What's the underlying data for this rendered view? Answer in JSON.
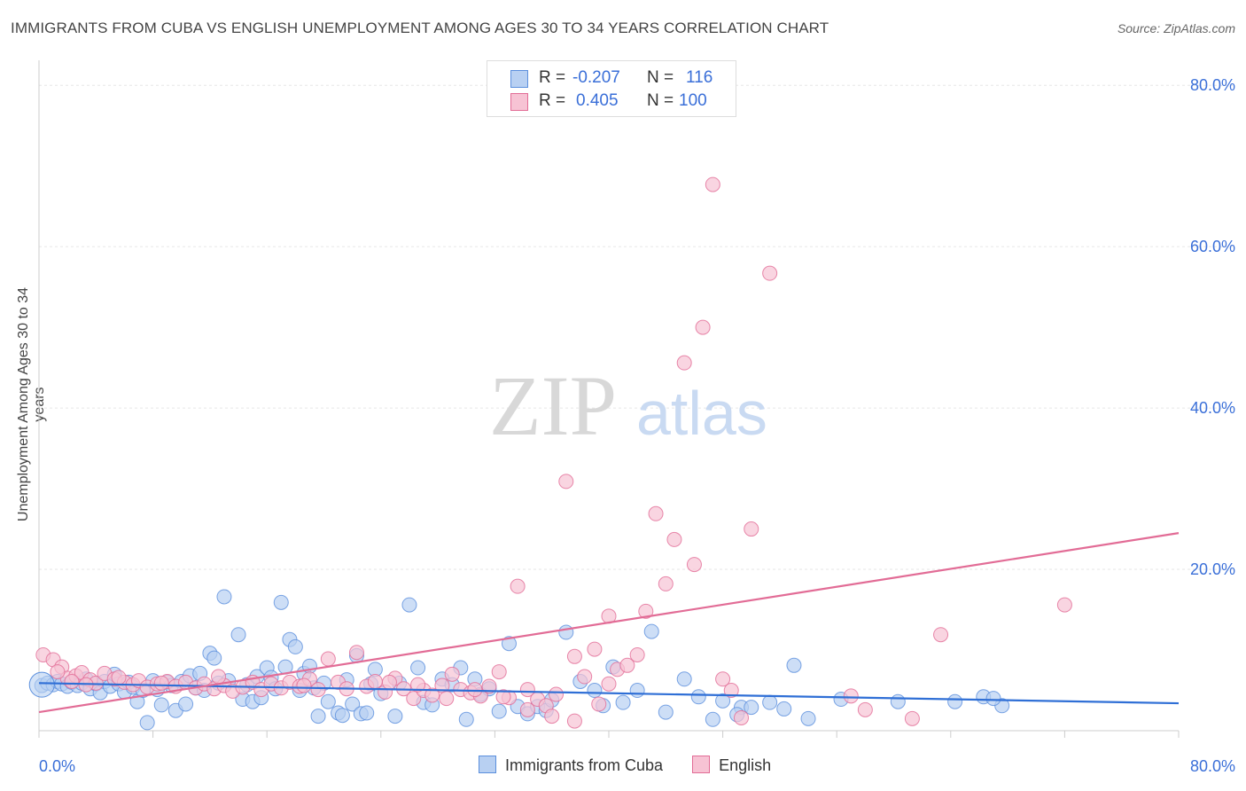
{
  "title": "IMMIGRANTS FROM CUBA VS ENGLISH UNEMPLOYMENT AMONG AGES 30 TO 34 YEARS CORRELATION CHART",
  "source": "Source: ZipAtlas.com",
  "watermark": {
    "part1": "ZIP",
    "part2": "atlas"
  },
  "colors": {
    "blue": "#5b8fdd",
    "blue_fill": "#b8d0f2",
    "pink": "#e26c96",
    "pink_fill": "#f7c3d4",
    "tick": "#3a6fd8"
  },
  "legend": {
    "rows": [
      {
        "r_label": "R =",
        "r_value": "-0.207",
        "n_label": "N =",
        "n_value": "116"
      },
      {
        "r_label": "R =",
        "r_value": "0.405",
        "n_label": "N =",
        "n_value": "100"
      }
    ]
  },
  "chart_data": {
    "type": "scatter",
    "title": "IMMIGRANTS FROM CUBA VS ENGLISH UNEMPLOYMENT AMONG AGES 30 TO 34 YEARS CORRELATION CHART",
    "xlabel": "",
    "ylabel": "Unemployment Among Ages 30 to 34 years",
    "xlim": [
      0,
      80
    ],
    "ylim": [
      0,
      82
    ],
    "x_tick_labels": [
      "0.0%",
      "80.0%"
    ],
    "y_tick_labels": [
      "80.0%",
      "60.0%",
      "40.0%",
      "20.0%"
    ],
    "y_ticks": [
      80,
      60,
      40,
      20
    ],
    "grid": true,
    "series": [
      {
        "name": "Immigrants from Cuba",
        "trend": {
          "x": [
            0,
            80
          ],
          "y": [
            5.9,
            3.4
          ]
        },
        "points": [
          [
            0.2,
            5.6
          ],
          [
            0.6,
            5.9
          ],
          [
            1.0,
            5.7
          ],
          [
            1.3,
            6.1
          ],
          [
            1.6,
            5.8
          ],
          [
            2.0,
            5.5
          ],
          [
            2.3,
            6.0
          ],
          [
            2.7,
            5.6
          ],
          [
            3.0,
            5.9
          ],
          [
            3.3,
            6.4
          ],
          [
            3.6,
            5.2
          ],
          [
            4.0,
            5.8
          ],
          [
            4.3,
            4.7
          ],
          [
            4.6,
            6.1
          ],
          [
            5.0,
            5.5
          ],
          [
            5.3,
            7.0
          ],
          [
            5.6,
            5.8
          ],
          [
            6.0,
            4.8
          ],
          [
            6.3,
            6.0
          ],
          [
            6.6,
            5.4
          ],
          [
            6.9,
            3.6
          ],
          [
            7.3,
            5.0
          ],
          [
            7.6,
            1.0
          ],
          [
            8.0,
            6.2
          ],
          [
            8.3,
            5.1
          ],
          [
            8.6,
            3.2
          ],
          [
            9.0,
            6.0
          ],
          [
            9.3,
            5.6
          ],
          [
            9.6,
            2.5
          ],
          [
            10.0,
            6.1
          ],
          [
            10.3,
            3.3
          ],
          [
            10.6,
            6.8
          ],
          [
            11.0,
            5.3
          ],
          [
            11.3,
            7.1
          ],
          [
            11.6,
            5.0
          ],
          [
            12.0,
            9.6
          ],
          [
            12.3,
            9.0
          ],
          [
            12.6,
            5.9
          ],
          [
            13.0,
            16.6
          ],
          [
            13.3,
            6.2
          ],
          [
            14.0,
            11.9
          ],
          [
            14.3,
            3.9
          ],
          [
            14.6,
            5.7
          ],
          [
            15.0,
            3.6
          ],
          [
            15.3,
            6.7
          ],
          [
            15.6,
            4.1
          ],
          [
            16.0,
            7.8
          ],
          [
            16.3,
            6.6
          ],
          [
            16.6,
            5.2
          ],
          [
            17.0,
            15.9
          ],
          [
            17.3,
            7.9
          ],
          [
            17.6,
            11.3
          ],
          [
            18.0,
            10.4
          ],
          [
            18.3,
            5.0
          ],
          [
            18.6,
            7.1
          ],
          [
            19.0,
            8.0
          ],
          [
            19.3,
            5.3
          ],
          [
            19.6,
            1.8
          ],
          [
            20.0,
            5.9
          ],
          [
            20.3,
            3.6
          ],
          [
            21.0,
            2.2
          ],
          [
            21.3,
            1.9
          ],
          [
            21.6,
            6.3
          ],
          [
            22.0,
            3.3
          ],
          [
            22.3,
            9.3
          ],
          [
            22.6,
            2.1
          ],
          [
            23.0,
            2.2
          ],
          [
            23.3,
            5.8
          ],
          [
            23.6,
            7.6
          ],
          [
            24.0,
            4.6
          ],
          [
            25.0,
            1.8
          ],
          [
            25.3,
            5.9
          ],
          [
            26.0,
            15.6
          ],
          [
            26.6,
            7.8
          ],
          [
            27.0,
            3.5
          ],
          [
            27.6,
            3.2
          ],
          [
            28.3,
            6.4
          ],
          [
            29.0,
            5.7
          ],
          [
            29.6,
            7.8
          ],
          [
            30.0,
            1.4
          ],
          [
            30.6,
            6.4
          ],
          [
            31.0,
            4.5
          ],
          [
            31.6,
            5.2
          ],
          [
            32.3,
            2.4
          ],
          [
            33.0,
            10.8
          ],
          [
            33.6,
            3.0
          ],
          [
            34.3,
            2.1
          ],
          [
            35.0,
            3.0
          ],
          [
            35.6,
            2.5
          ],
          [
            37.0,
            12.2
          ],
          [
            38.0,
            6.1
          ],
          [
            39.0,
            5.0
          ],
          [
            39.6,
            3.1
          ],
          [
            40.3,
            7.9
          ],
          [
            41.0,
            3.5
          ],
          [
            42.0,
            5.0
          ],
          [
            43.0,
            12.3
          ],
          [
            44.0,
            2.3
          ],
          [
            45.3,
            6.4
          ],
          [
            46.3,
            4.2
          ],
          [
            47.3,
            1.4
          ],
          [
            48.0,
            3.7
          ],
          [
            49.3,
            2.9
          ],
          [
            50.0,
            2.9
          ],
          [
            51.3,
            3.5
          ],
          [
            52.3,
            2.7
          ],
          [
            53.0,
            8.1
          ],
          [
            54.0,
            1.5
          ],
          [
            56.3,
            3.9
          ],
          [
            60.3,
            3.6
          ],
          [
            64.3,
            3.6
          ],
          [
            66.3,
            4.2
          ],
          [
            67.6,
            3.1
          ],
          [
            67.0,
            4.0
          ],
          [
            49.0,
            2.0
          ],
          [
            36.0,
            3.8
          ]
        ]
      },
      {
        "name": "English",
        "trend": {
          "x": [
            0,
            80
          ],
          "y": [
            2.3,
            24.5
          ]
        },
        "points": [
          [
            0.3,
            9.4
          ],
          [
            1.0,
            8.8
          ],
          [
            1.6,
            7.9
          ],
          [
            2.0,
            6.5
          ],
          [
            2.6,
            6.8
          ],
          [
            3.0,
            7.2
          ],
          [
            3.6,
            6.3
          ],
          [
            4.0,
            5.9
          ],
          [
            4.6,
            7.1
          ],
          [
            5.3,
            6.4
          ],
          [
            6.0,
            6.0
          ],
          [
            6.6,
            5.7
          ],
          [
            7.0,
            6.2
          ],
          [
            7.6,
            5.4
          ],
          [
            8.3,
            5.8
          ],
          [
            9.0,
            6.1
          ],
          [
            9.6,
            5.5
          ],
          [
            10.3,
            6.0
          ],
          [
            11.0,
            5.3
          ],
          [
            11.6,
            5.8
          ],
          [
            12.3,
            5.2
          ],
          [
            13.0,
            5.6
          ],
          [
            13.6,
            4.9
          ],
          [
            14.3,
            5.4
          ],
          [
            15.0,
            6.0
          ],
          [
            15.6,
            5.1
          ],
          [
            16.3,
            5.8
          ],
          [
            17.0,
            5.3
          ],
          [
            17.6,
            6.0
          ],
          [
            18.3,
            5.5
          ],
          [
            19.0,
            6.4
          ],
          [
            19.6,
            5.1
          ],
          [
            20.3,
            8.9
          ],
          [
            21.0,
            6.0
          ],
          [
            21.6,
            5.2
          ],
          [
            22.3,
            9.7
          ],
          [
            23.0,
            5.5
          ],
          [
            23.6,
            6.1
          ],
          [
            24.3,
            4.8
          ],
          [
            25.0,
            6.5
          ],
          [
            25.6,
            5.2
          ],
          [
            26.3,
            4.0
          ],
          [
            27.0,
            5.0
          ],
          [
            27.6,
            4.4
          ],
          [
            28.3,
            5.6
          ],
          [
            29.0,
            7.0
          ],
          [
            29.6,
            5.1
          ],
          [
            30.3,
            4.7
          ],
          [
            31.0,
            4.3
          ],
          [
            31.6,
            5.5
          ],
          [
            32.3,
            7.3
          ],
          [
            33.0,
            4.1
          ],
          [
            33.6,
            17.9
          ],
          [
            34.3,
            5.1
          ],
          [
            35.0,
            3.9
          ],
          [
            35.6,
            3.1
          ],
          [
            36.3,
            4.5
          ],
          [
            37.0,
            30.9
          ],
          [
            37.6,
            9.2
          ],
          [
            38.3,
            6.7
          ],
          [
            39.0,
            10.1
          ],
          [
            40.0,
            14.2
          ],
          [
            40.6,
            7.6
          ],
          [
            41.3,
            8.1
          ],
          [
            42.0,
            9.4
          ],
          [
            42.6,
            14.8
          ],
          [
            43.3,
            26.9
          ],
          [
            44.0,
            18.2
          ],
          [
            44.6,
            23.7
          ],
          [
            45.3,
            45.6
          ],
          [
            46.0,
            20.6
          ],
          [
            46.6,
            50.0
          ],
          [
            47.3,
            67.7
          ],
          [
            48.0,
            6.4
          ],
          [
            48.6,
            5.0
          ],
          [
            49.3,
            1.6
          ],
          [
            50.0,
            25.0
          ],
          [
            51.3,
            56.7
          ],
          [
            57.0,
            4.3
          ],
          [
            58.0,
            2.6
          ],
          [
            61.3,
            1.5
          ],
          [
            63.3,
            11.9
          ],
          [
            72.0,
            15.6
          ],
          [
            34.3,
            2.6
          ],
          [
            36.0,
            1.8
          ],
          [
            37.6,
            1.2
          ],
          [
            40.0,
            5.8
          ],
          [
            30.6,
            5.1
          ],
          [
            28.6,
            4.0
          ],
          [
            24.6,
            6.0
          ],
          [
            18.6,
            5.6
          ],
          [
            12.6,
            6.7
          ],
          [
            8.6,
            5.9
          ],
          [
            5.6,
            6.6
          ],
          [
            3.3,
            5.7
          ],
          [
            1.3,
            7.3
          ],
          [
            2.3,
            6.1
          ],
          [
            26.6,
            5.7
          ],
          [
            32.6,
            4.2
          ],
          [
            39.3,
            3.3
          ]
        ]
      }
    ]
  },
  "bottom_legend": [
    {
      "label": "Immigrants from Cuba"
    },
    {
      "label": "English"
    }
  ]
}
